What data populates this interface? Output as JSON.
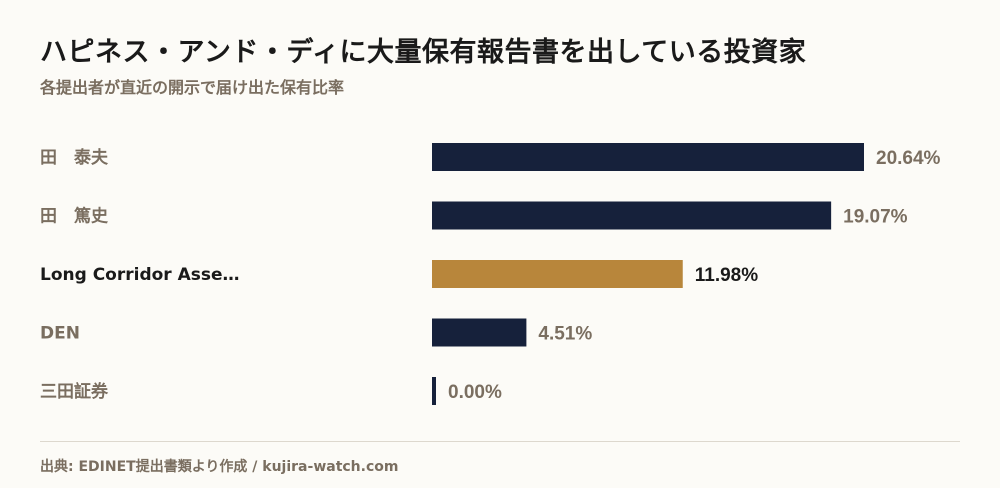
{
  "title": "ハピネス・アンド・ディに大量保有報告書を出している投資家",
  "subtitle": "各提出者が直近の開示で届け出た保有比率",
  "footer": "出典: EDINET提出書類より作成 / kujira-watch.com",
  "colors": {
    "bar_default": "#16213b",
    "bar_highlight": "#b8863b",
    "label_default": "#7a6e60",
    "label_highlight": "#1a1a1a",
    "footer_line": "#ddd8ce"
  },
  "chart_data": {
    "type": "bar",
    "orientation": "horizontal",
    "categories": [
      "田　泰夫",
      "田　篤史",
      "Long Corridor Asse…",
      "DEN",
      "三田証券"
    ],
    "values": [
      20.64,
      19.07,
      11.98,
      4.51,
      0.0
    ],
    "value_labels": [
      "20.64%",
      "19.07%",
      "11.98%",
      "4.51%",
      "0.00%"
    ],
    "highlight_index": 2,
    "unit": "%",
    "xlim": [
      0,
      20.64
    ]
  }
}
